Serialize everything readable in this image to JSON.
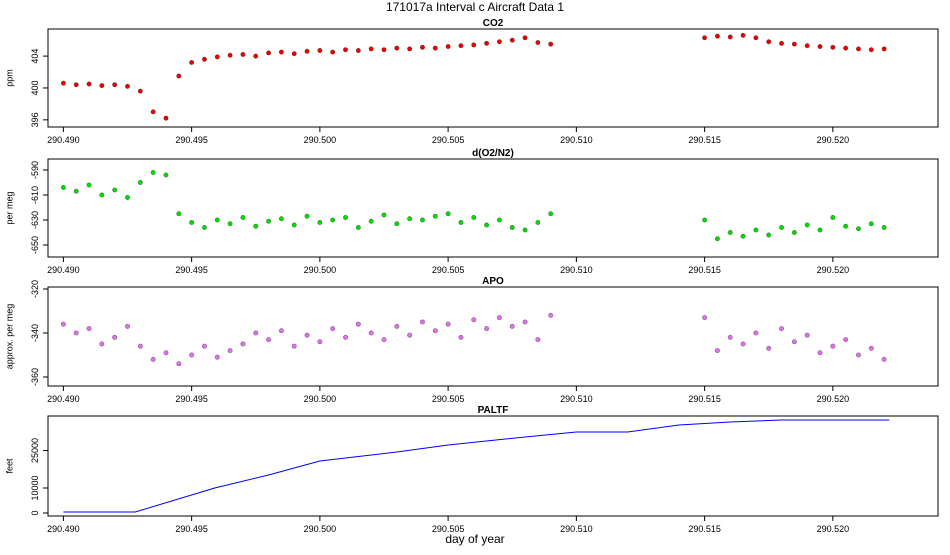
{
  "title": "171017a   Interval c Aircraft Data 1",
  "xlabel": "day of year",
  "chart_data": [
    {
      "type": "scatter",
      "title": "CO2",
      "ylabel": "ppm",
      "color": "#ee0000",
      "xlim": [
        290.4894,
        290.5241
      ],
      "ylim": [
        395.1,
        407.4
      ],
      "yticks": [
        396,
        400,
        404
      ],
      "xticks": [
        {
          "value": 290.49,
          "label": "290.490"
        },
        290.495,
        {
          "value": 290.5,
          "label": "290.500"
        },
        290.505,
        {
          "value": 290.51,
          "label": "290.510"
        },
        290.515,
        {
          "value": 290.52,
          "label": "290.520"
        }
      ],
      "x": [
        290.49,
        290.4905,
        290.491,
        290.4915,
        290.492,
        290.4925,
        290.493,
        290.4935,
        290.494,
        290.4945,
        290.495,
        290.4955,
        290.496,
        290.4965,
        290.497,
        290.4975,
        290.498,
        290.4985,
        290.499,
        290.4995,
        290.5,
        290.5005,
        290.501,
        290.5015,
        290.502,
        290.5025,
        290.503,
        290.5035,
        290.504,
        290.5045,
        290.505,
        290.5055,
        290.506,
        290.5065,
        290.507,
        290.5075,
        290.508,
        290.5085,
        290.509,
        290.515,
        290.5155,
        290.516,
        290.5165,
        290.517,
        290.5175,
        290.518,
        290.5185,
        290.519,
        290.5195,
        290.52,
        290.5205,
        290.521,
        290.5215,
        290.522
      ],
      "values": [
        400.6,
        400.4,
        400.5,
        400.3,
        400.4,
        400.2,
        399.6,
        397.0,
        396.2,
        401.5,
        403.2,
        403.6,
        403.9,
        404.1,
        404.2,
        404.0,
        404.4,
        404.5,
        404.3,
        404.6,
        404.7,
        404.5,
        404.8,
        404.7,
        404.9,
        404.8,
        405.0,
        404.9,
        405.1,
        405.0,
        405.2,
        405.3,
        405.4,
        405.6,
        405.8,
        406.0,
        406.3,
        405.7,
        405.5,
        406.3,
        406.5,
        406.4,
        406.6,
        406.3,
        405.8,
        405.6,
        405.5,
        405.3,
        405.2,
        405.1,
        405.0,
        404.9,
        404.8,
        404.9
      ]
    },
    {
      "type": "scatter",
      "title": "d(O2/N2)",
      "ylabel": "per meg",
      "color": "#00e000",
      "xlim": [
        290.4894,
        290.5241
      ],
      "ylim": [
        -659.6,
        -581.2
      ],
      "yticks": [
        -590,
        -610,
        -630,
        -650
      ],
      "xticks": [
        {
          "value": 290.49,
          "label": "290.490"
        },
        290.495,
        {
          "value": 290.5,
          "label": "290.500"
        },
        290.505,
        {
          "value": 290.51,
          "label": "290.510"
        },
        290.515,
        {
          "value": 290.52,
          "label": "290.520"
        }
      ],
      "x": [
        290.49,
        290.4905,
        290.491,
        290.4915,
        290.492,
        290.4925,
        290.493,
        290.4935,
        290.494,
        290.4945,
        290.495,
        290.4955,
        290.496,
        290.4965,
        290.497,
        290.4975,
        290.498,
        290.4985,
        290.499,
        290.4995,
        290.5,
        290.5005,
        290.501,
        290.5015,
        290.502,
        290.5025,
        290.503,
        290.5035,
        290.504,
        290.5045,
        290.505,
        290.5055,
        290.506,
        290.5065,
        290.507,
        290.5075,
        290.508,
        290.5085,
        290.509,
        290.515,
        290.5155,
        290.516,
        290.5165,
        290.517,
        290.5175,
        290.518,
        290.5185,
        290.519,
        290.5195,
        290.52,
        290.5205,
        290.521,
        290.5215,
        290.522
      ],
      "values": [
        -604,
        -607,
        -602,
        -610,
        -606,
        -612,
        -600,
        -592,
        -594,
        -625,
        -632,
        -636,
        -630,
        -633,
        -628,
        -635,
        -631,
        -629,
        -634,
        -627,
        -632,
        -630,
        -628,
        -636,
        -631,
        -626,
        -633,
        -629,
        -630,
        -627,
        -625,
        -632,
        -628,
        -634,
        -630,
        -636,
        -638,
        -632,
        -625,
        -630,
        -645,
        -640,
        -643,
        -638,
        -642,
        -636,
        -640,
        -634,
        -638,
        -628,
        -635,
        -637,
        -633,
        -636
      ]
    },
    {
      "type": "scatter",
      "title": "APO",
      "ylabel": "approx. per meg",
      "color": "#e070ee",
      "xlim": [
        290.4894,
        290.5241
      ],
      "ylim": [
        -364.1,
        -319.1
      ],
      "yticks": [
        -320,
        -340,
        -360
      ],
      "xticks": [
        {
          "value": 290.49,
          "label": "290.490"
        },
        290.495,
        {
          "value": 290.5,
          "label": "290.500"
        },
        290.505,
        {
          "value": 290.51,
          "label": "290.510"
        },
        290.515,
        {
          "value": 290.52,
          "label": "290.520"
        }
      ],
      "x": [
        290.49,
        290.4905,
        290.491,
        290.4915,
        290.492,
        290.4925,
        290.493,
        290.4935,
        290.494,
        290.4945,
        290.495,
        290.4955,
        290.496,
        290.4965,
        290.497,
        290.4975,
        290.498,
        290.4985,
        290.499,
        290.4995,
        290.5,
        290.5005,
        290.501,
        290.5015,
        290.502,
        290.5025,
        290.503,
        290.5035,
        290.504,
        290.5045,
        290.505,
        290.5055,
        290.506,
        290.5065,
        290.507,
        290.5075,
        290.508,
        290.5085,
        290.509,
        290.515,
        290.5155,
        290.516,
        290.5165,
        290.517,
        290.5175,
        290.518,
        290.5185,
        290.519,
        290.5195,
        290.52,
        290.5205,
        290.521,
        290.5215,
        290.522
      ],
      "values": [
        -336,
        -340,
        -338,
        -345,
        -342,
        -337,
        -346,
        -352,
        -349,
        -354,
        -350,
        -346,
        -351,
        -348,
        -345,
        -340,
        -343,
        -339,
        -346,
        -341,
        -344,
        -338,
        -342,
        -336,
        -340,
        -343,
        -337,
        -341,
        -335,
        -339,
        -336,
        -342,
        -334,
        -338,
        -333,
        -337,
        -335,
        -343,
        -332,
        -333,
        -348,
        -342,
        -345,
        -340,
        -347,
        -338,
        -344,
        -341,
        -349,
        -346,
        -343,
        -350,
        -347,
        -352
      ]
    },
    {
      "type": "line",
      "title": "PALTF",
      "ylabel": "feet",
      "color": "#0000ff",
      "xlim": [
        290.4894,
        290.5241
      ],
      "ylim": [
        -1200,
        38800
      ],
      "yticks": [
        0,
        10000,
        25000
      ],
      "xticks": [
        {
          "value": 290.49,
          "label": "290.490"
        },
        290.495,
        {
          "value": 290.5,
          "label": "290.500"
        },
        290.505,
        {
          "value": 290.51,
          "label": "290.510"
        },
        290.515,
        {
          "value": 290.52,
          "label": "290.520"
        }
      ],
      "x": [
        290.49,
        290.4928,
        290.4959,
        290.498,
        290.5,
        290.503,
        290.505,
        290.508,
        290.51,
        290.512,
        290.514,
        290.516,
        290.518,
        290.5222
      ],
      "values": [
        400,
        400,
        10000,
        15200,
        20800,
        24400,
        27200,
        30400,
        32400,
        32400,
        35200,
        36400,
        37200,
        37200
      ]
    }
  ]
}
